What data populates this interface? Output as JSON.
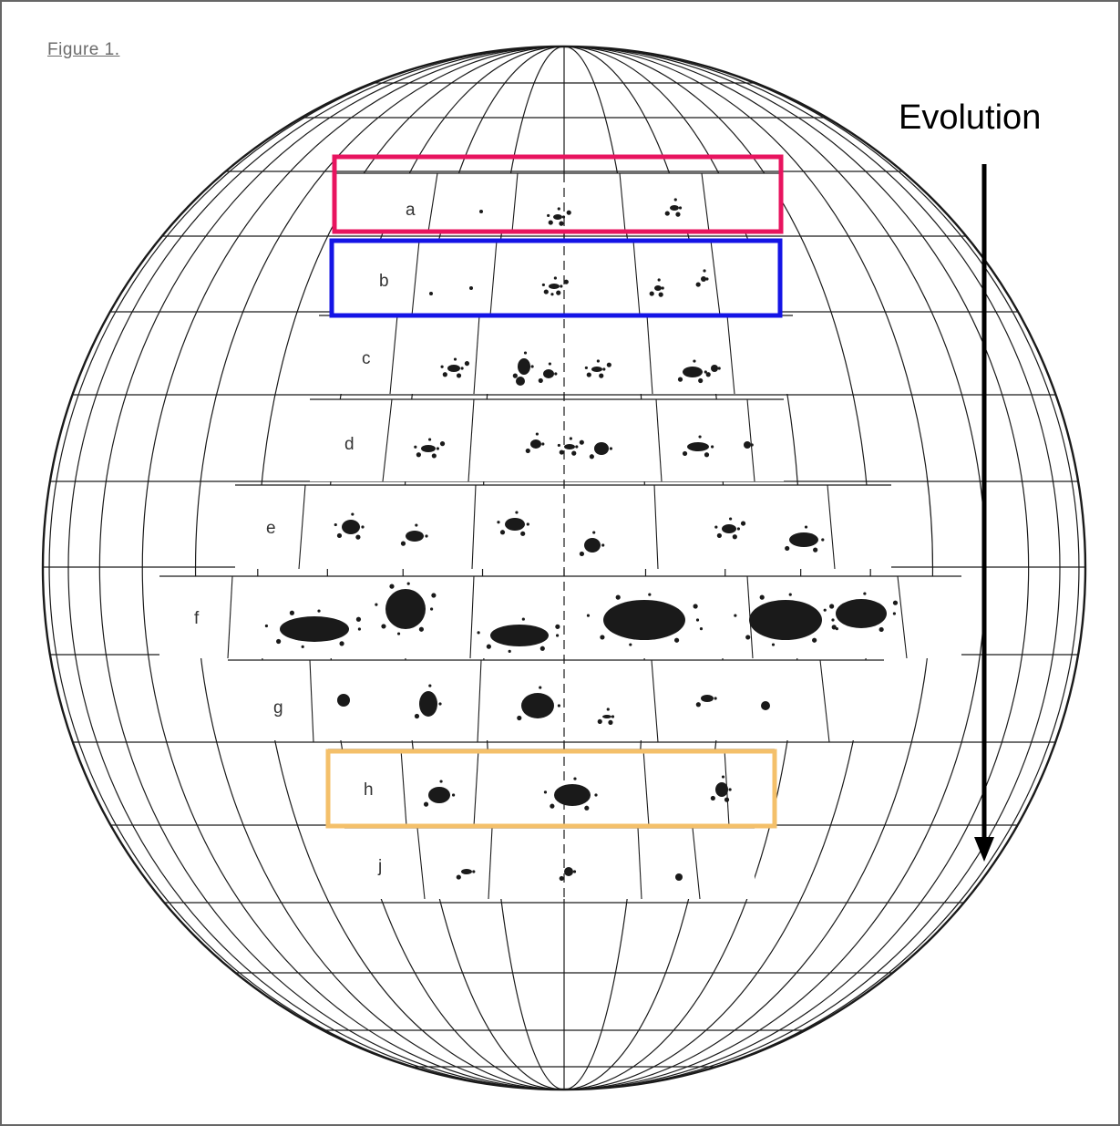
{
  "figure": {
    "title": "Figure 1.",
    "arrow_label": "Evolution",
    "row_labels": [
      "a",
      "b",
      "c",
      "d",
      "e",
      "f",
      "g",
      "h",
      "j"
    ],
    "highlight_colors": {
      "a": "#e8145f",
      "b": "#1414e6",
      "h": "#f4c06a"
    },
    "ink_color": "#1a1a1a"
  }
}
